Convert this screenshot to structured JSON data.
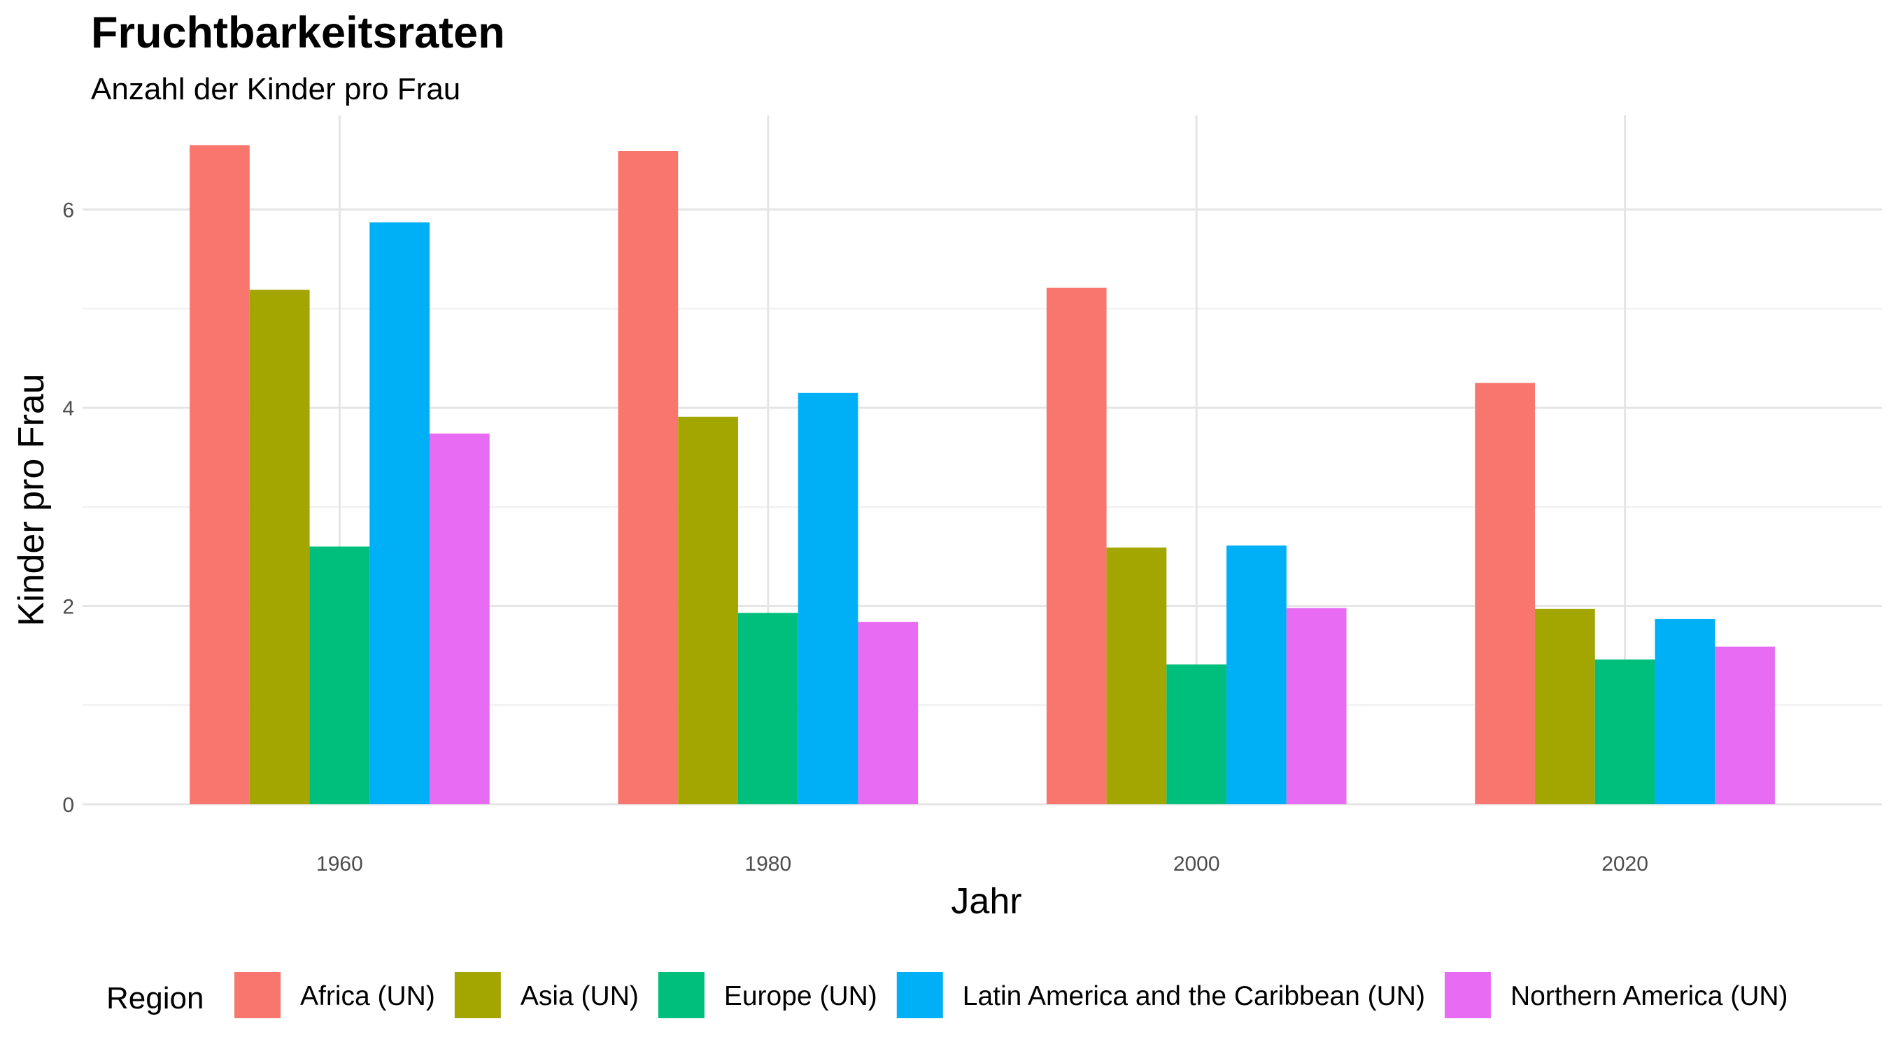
{
  "chart_data": {
    "type": "bar",
    "title": "Fruchtbarkeitsraten",
    "subtitle": "Anzahl der Kinder pro Frau",
    "xlabel": "Jahr",
    "ylabel": "Kinder pro Frau",
    "legend_title": "Region",
    "legend_position": "bottom",
    "grid": true,
    "xlim": [
      1948,
      2032
    ],
    "ylim": [
      0,
      6.95
    ],
    "x_ticks": [
      "1960",
      "1980",
      "2000",
      "2020"
    ],
    "y_ticks": [
      "0",
      "2",
      "4",
      "6"
    ],
    "categories": [
      1960,
      1980,
      2000,
      2020
    ],
    "series": [
      {
        "name": "Africa (UN)",
        "color": "#F8766D",
        "values": [
          6.65,
          6.59,
          5.21,
          4.25
        ]
      },
      {
        "name": "Asia (UN)",
        "color": "#A3A500",
        "values": [
          5.19,
          3.91,
          2.59,
          1.97
        ]
      },
      {
        "name": "Europe (UN)",
        "color": "#00BF7D",
        "values": [
          2.6,
          1.93,
          1.41,
          1.46
        ]
      },
      {
        "name": "Latin America and the Caribbean (UN)",
        "color": "#00B0F6",
        "values": [
          5.87,
          4.15,
          2.61,
          1.87
        ]
      },
      {
        "name": "Northern America (UN)",
        "color": "#E76BF3",
        "values": [
          3.74,
          1.84,
          1.98,
          1.59
        ]
      }
    ]
  }
}
